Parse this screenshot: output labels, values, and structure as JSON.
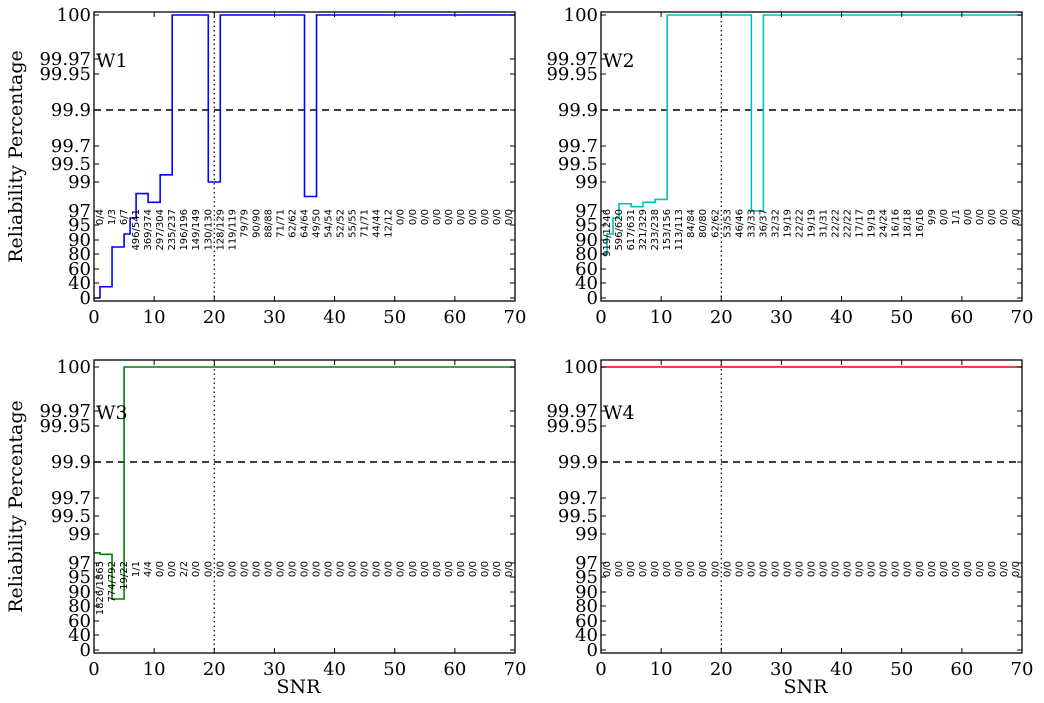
{
  "chart_data": [
    {
      "type": "line",
      "label": "W1",
      "color": "#0000ff",
      "xlabel": "",
      "ylabel": "Reliability Percentage",
      "xlim": [
        0,
        70
      ],
      "xticks": [
        "0",
        "10",
        "20",
        "30",
        "40",
        "50",
        "60",
        "70"
      ],
      "yticks": [
        "0",
        "40",
        "60",
        "80",
        "90",
        "95",
        "97",
        "99",
        "99.5",
        "99.7",
        "99.9",
        "99.95",
        "99.97",
        "100"
      ],
      "threshold": 99.9,
      "vline_x": 20,
      "steps": [
        [
          0,
          0
        ],
        [
          1,
          30
        ],
        [
          3,
          85
        ],
        [
          5,
          92
        ],
        [
          6,
          96
        ],
        [
          7,
          98.2
        ],
        [
          9,
          97.6
        ],
        [
          11,
          99.2
        ],
        [
          13,
          100
        ],
        [
          19,
          99
        ],
        [
          21,
          100
        ],
        [
          35,
          98
        ],
        [
          37,
          100
        ],
        [
          70,
          100
        ]
      ],
      "annotations": [
        "0/4",
        "1/3",
        "6/7",
        "496/541",
        "369/374",
        "297/304",
        "235/237",
        "196/196",
        "149/149",
        "130/130",
        "128/129",
        "119/119",
        "79/79",
        "90/90",
        "88/88",
        "71/71",
        "62/62",
        "64/64",
        "49/50",
        "54/54",
        "52/52",
        "55/55",
        "71/71",
        "44/44",
        "12/12",
        "0/0",
        "0/0",
        "0/0",
        "0/0",
        "0/0",
        "0/0",
        "0/0",
        "0/0",
        "0/0",
        "0/0"
      ]
    },
    {
      "type": "line",
      "label": "W2",
      "color": "#00bfbf",
      "xlabel": "",
      "ylabel": "",
      "xlim": [
        0,
        70
      ],
      "xticks": [
        "0",
        "10",
        "20",
        "30",
        "40",
        "50",
        "60",
        "70"
      ],
      "yticks": [
        "0",
        "40",
        "60",
        "80",
        "90",
        "95",
        "97",
        "99",
        "99.5",
        "99.7",
        "99.9",
        "99.95",
        "99.97",
        "100"
      ],
      "threshold": 99.9,
      "vline_x": 20,
      "steps": [
        [
          0,
          80
        ],
        [
          1,
          92
        ],
        [
          2,
          96
        ],
        [
          3,
          97.5
        ],
        [
          5,
          97.3
        ],
        [
          7,
          97.6
        ],
        [
          9,
          97.8
        ],
        [
          11,
          100
        ],
        [
          25,
          97
        ],
        [
          27,
          100
        ],
        [
          70,
          100
        ]
      ],
      "annotations": [
        "919/1246",
        "596/620",
        "617/631",
        "321/329",
        "233/238",
        "153/156",
        "113/113",
        "84/84",
        "80/80",
        "62/62",
        "53/53",
        "46/46",
        "33/33",
        "36/37",
        "32/32",
        "19/19",
        "22/22",
        "19/19",
        "31/31",
        "22/22",
        "22/22",
        "17/17",
        "19/19",
        "24/24",
        "16/16",
        "18/18",
        "16/16",
        "9/9",
        "0/0",
        "1/1",
        "0/0",
        "0/0",
        "0/0",
        "0/0",
        "0/0"
      ]
    },
    {
      "type": "line",
      "label": "W3",
      "color": "#008000",
      "xlabel": "SNR",
      "ylabel": "Reliability Percentage",
      "xlim": [
        0,
        70
      ],
      "xticks": [
        "0",
        "10",
        "20",
        "30",
        "40",
        "50",
        "60",
        "70"
      ],
      "yticks": [
        "0",
        "40",
        "60",
        "80",
        "90",
        "95",
        "97",
        "99",
        "99.5",
        "99.7",
        "99.9",
        "99.95",
        "99.97",
        "100"
      ],
      "threshold": 99.9,
      "vline_x": 20,
      "steps": [
        [
          0,
          97.7
        ],
        [
          1,
          97.6
        ],
        [
          3,
          85
        ],
        [
          5,
          100
        ],
        [
          70,
          100
        ]
      ],
      "annotations": [
        "1826/1865",
        "774/792",
        "19/22",
        "1/1",
        "4/4",
        "0/0",
        "0/0",
        "2/2",
        "0/0",
        "0/0",
        "0/0",
        "0/0",
        "0/0",
        "0/0",
        "0/0",
        "0/0",
        "0/0",
        "0/0",
        "0/0",
        "0/0",
        "0/0",
        "0/0",
        "0/0",
        "0/0",
        "0/0",
        "0/0",
        "0/0",
        "0/0",
        "0/0",
        "0/0",
        "0/0",
        "0/0",
        "0/0",
        "0/0",
        "0/0"
      ]
    },
    {
      "type": "line",
      "label": "W4",
      "color": "#ff0000",
      "xlabel": "SNR",
      "ylabel": "",
      "xlim": [
        0,
        70
      ],
      "xticks": [
        "0",
        "10",
        "20",
        "30",
        "40",
        "50",
        "60",
        "70"
      ],
      "yticks": [
        "0",
        "40",
        "60",
        "80",
        "90",
        "95",
        "97",
        "99",
        "99.5",
        "99.7",
        "99.9",
        "99.95",
        "99.97",
        "100"
      ],
      "threshold": 99.9,
      "vline_x": 20,
      "steps": [
        [
          0,
          100
        ],
        [
          70,
          100
        ]
      ],
      "annotations": [
        "0/0",
        "0/0",
        "0/0",
        "0/0",
        "0/0",
        "0/0",
        "0/0",
        "0/0",
        "0/0",
        "0/0",
        "0/0",
        "0/0",
        "0/0",
        "0/0",
        "0/0",
        "0/0",
        "0/0",
        "0/0",
        "0/0",
        "0/0",
        "0/0",
        "0/0",
        "0/0",
        "0/0",
        "0/0",
        "0/0",
        "0/0",
        "0/0",
        "0/0",
        "0/0",
        "0/0",
        "0/0",
        "0/0",
        "0/0",
        "0/0"
      ]
    }
  ]
}
